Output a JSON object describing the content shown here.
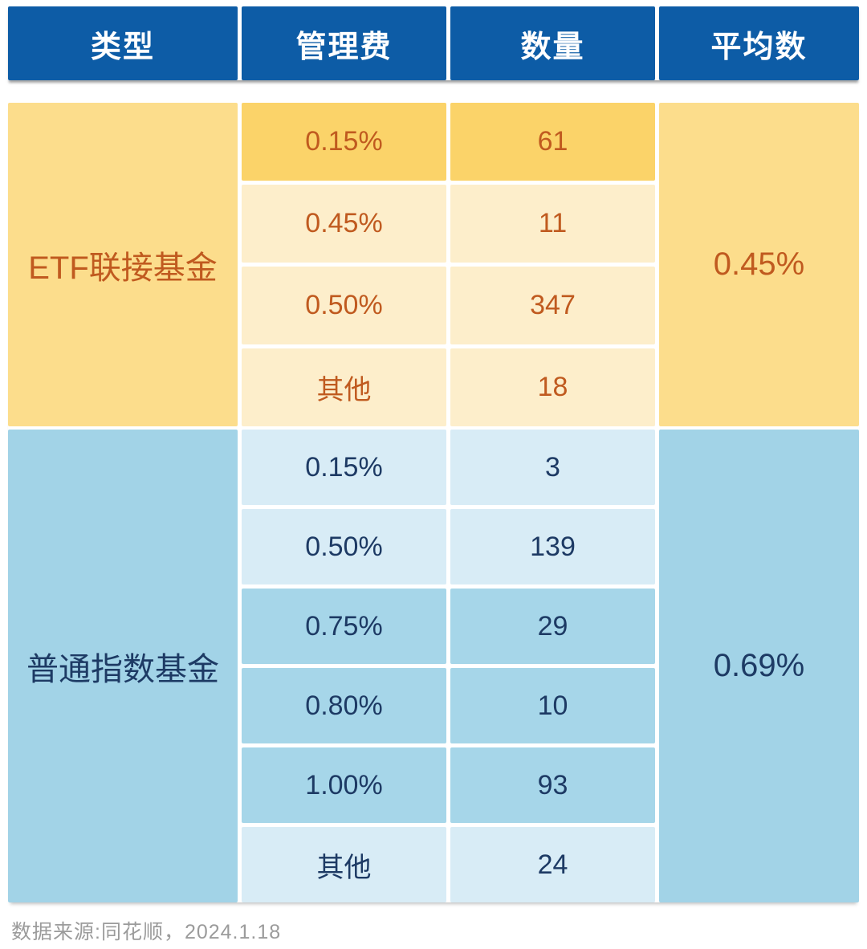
{
  "table": {
    "columns": [
      "类型",
      "管理费",
      "数量",
      "平均数"
    ],
    "sections": [
      {
        "type": "ETF联接基金",
        "average": "0.45%",
        "rows": [
          {
            "fee": "0.15%",
            "count": "61",
            "shade": "dark"
          },
          {
            "fee": "0.45%",
            "count": "11",
            "shade": "light"
          },
          {
            "fee": "0.50%",
            "count": "347",
            "shade": "light"
          },
          {
            "fee": "其他",
            "count": "18",
            "shade": "light"
          }
        ]
      },
      {
        "type": "普通指数基金",
        "average": "0.69%",
        "rows": [
          {
            "fee": "0.15%",
            "count": "3",
            "shade": "light"
          },
          {
            "fee": "0.50%",
            "count": "139",
            "shade": "light"
          },
          {
            "fee": "0.75%",
            "count": "29",
            "shade": "medium"
          },
          {
            "fee": "0.80%",
            "count": "10",
            "shade": "medium"
          },
          {
            "fee": "1.00%",
            "count": "93",
            "shade": "medium"
          },
          {
            "fee": "其他",
            "count": "24",
            "shade": "light"
          }
        ]
      }
    ]
  },
  "footer": {
    "source": "数据来源:同花顺，2024.1.18"
  },
  "colors": {
    "header_blue": "#0d5ca6",
    "yellow_span": "#fcdd8c",
    "yellow_row_dark": "#fbd369",
    "yellow_row_light": "#fdeecb",
    "yellow_text": "#c05a1f",
    "blue_span": "#a2d3e7",
    "blue_row_light": "#d8ecf6",
    "blue_row_medium": "#a6d6e9",
    "blue_text": "#1d3a64",
    "footer_gray": "#9b9b9b"
  },
  "chart_data": {
    "type": "table",
    "title": "",
    "columns": [
      "类型",
      "管理费",
      "数量",
      "平均数"
    ],
    "rows": [
      [
        "ETF联接基金",
        "0.15%",
        61,
        "0.45%"
      ],
      [
        "ETF联接基金",
        "0.45%",
        11,
        "0.45%"
      ],
      [
        "ETF联接基金",
        "0.50%",
        347,
        "0.45%"
      ],
      [
        "ETF联接基金",
        "其他",
        18,
        "0.45%"
      ],
      [
        "普通指数基金",
        "0.15%",
        3,
        "0.69%"
      ],
      [
        "普通指数基金",
        "0.50%",
        139,
        "0.69%"
      ],
      [
        "普通指数基金",
        "0.75%",
        29,
        "0.69%"
      ],
      [
        "普通指数基金",
        "0.80%",
        10,
        "0.69%"
      ],
      [
        "普通指数基金",
        "1.00%",
        93,
        "0.69%"
      ],
      [
        "普通指数基金",
        "其他",
        24,
        "0.69%"
      ]
    ],
    "notes": "数据来源:同花顺，2024.1.18"
  }
}
